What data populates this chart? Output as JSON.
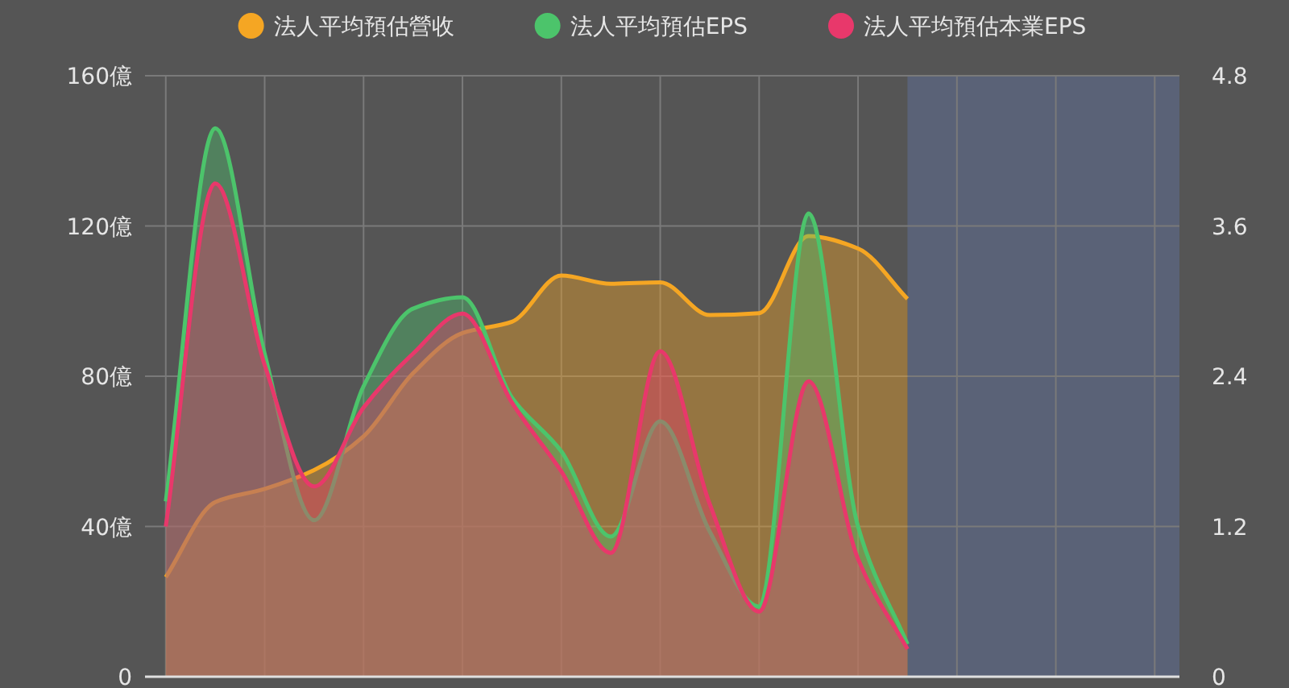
{
  "chart_data": {
    "type": "area",
    "categories": [
      null,
      null,
      null,
      null,
      null,
      null,
      null,
      null,
      null,
      null,
      null,
      null,
      null,
      null,
      null,
      null,
      null,
      null,
      null,
      null,
      null
    ],
    "series": [
      {
        "name": "法人平均預估營收",
        "color": "#f5a623",
        "values": [
          26.5,
          46.5,
          50,
          55,
          64,
          80.8,
          91.5,
          94.5,
          106.8,
          104.6,
          105,
          96.3,
          96.8,
          117.3,
          114,
          100.6,
          null,
          null,
          null,
          null,
          null
        ]
      },
      {
        "name": "法人平均預估EPS",
        "color": "#4cc46b",
        "axis": "y2",
        "values": [
          1.4,
          4.38,
          2.58,
          1.25,
          2.32,
          2.94,
          3.03,
          2.23,
          1.8,
          1.12,
          2.04,
          1.16,
          0.56,
          3.7,
          1.2,
          0.26,
          null,
          null,
          null,
          null,
          null
        ]
      },
      {
        "name": "法人平均預估本業EPS",
        "color": "#e8386b",
        "axis": "y2",
        "values": [
          1.2,
          3.94,
          2.49,
          1.52,
          2.15,
          2.58,
          2.9,
          2.19,
          1.64,
          0.99,
          2.6,
          1.38,
          0.52,
          2.36,
          0.94,
          0.22,
          null,
          null,
          null,
          null,
          null
        ]
      }
    ],
    "ylim": [
      0,
      160
    ],
    "yticks": [
      0,
      {
        "value": 40,
        "label": "40億"
      },
      {
        "value": 80,
        "label": "80億"
      },
      {
        "value": 120,
        "label": "120億"
      },
      {
        "value": 160,
        "label": "160億"
      }
    ],
    "y2lim": [
      0,
      4.8
    ],
    "y2ticks": [
      0,
      1.2,
      2.4,
      3.6,
      4.8
    ],
    "grid": true,
    "legend": "top",
    "marker": "none",
    "line_style": "solid"
  }
}
